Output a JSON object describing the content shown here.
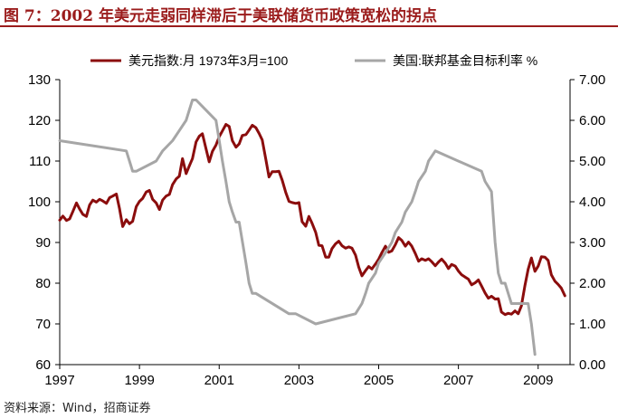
{
  "title": "图 7：2002 年美元走弱同样滞后于美联储货币政策宽松的拐点",
  "source": "资料来源：Wind，招商证券",
  "chart_data": {
    "type": "line",
    "title": "图 7：2002 年美元走弱同样滞后于美联储货币政策宽松的拐点",
    "x_tick_labels": [
      "1997",
      "1999",
      "2001",
      "2003",
      "2005",
      "2007",
      "2009"
    ],
    "x_ticks": [
      1997,
      1999,
      2001,
      2003,
      2005,
      2007,
      2009
    ],
    "xlim": [
      1997,
      2009.8
    ],
    "ylim_left": [
      60,
      130
    ],
    "left_ticks": [
      60,
      70,
      80,
      90,
      100,
      110,
      120,
      130
    ],
    "left_tick_labels": [
      "60",
      "70",
      "80",
      "90",
      "100",
      "110",
      "120",
      "130"
    ],
    "ylim_right": [
      0,
      7
    ],
    "right_ticks": [
      0,
      1,
      2,
      3,
      4,
      5,
      6,
      7
    ],
    "right_tick_labels": [
      "0.00",
      "1.00",
      "2.00",
      "3.00",
      "4.00",
      "5.00",
      "6.00",
      "7.00"
    ],
    "legend_position": "top",
    "grid": false,
    "series": [
      {
        "name": "美元指数:月 1973年3月=100",
        "axis": "left",
        "color": "#8b0d0d",
        "x": [
          1997.0,
          1997.08,
          1997.17,
          1997.25,
          1997.33,
          1997.42,
          1997.5,
          1997.58,
          1997.67,
          1997.75,
          1997.83,
          1997.92,
          1998.0,
          1998.08,
          1998.17,
          1998.25,
          1998.33,
          1998.42,
          1998.5,
          1998.58,
          1998.67,
          1998.75,
          1998.83,
          1998.92,
          1999.0,
          1999.08,
          1999.17,
          1999.25,
          1999.33,
          1999.42,
          1999.5,
          1999.58,
          1999.67,
          1999.75,
          1999.83,
          1999.92,
          2000.0,
          2000.08,
          2000.17,
          2000.25,
          2000.33,
          2000.42,
          2000.5,
          2000.58,
          2000.67,
          2000.75,
          2000.83,
          2000.92,
          2001.0,
          2001.08,
          2001.17,
          2001.25,
          2001.33,
          2001.42,
          2001.5,
          2001.58,
          2001.67,
          2001.75,
          2001.83,
          2001.92,
          2002.0,
          2002.08,
          2002.17,
          2002.25,
          2002.33,
          2002.42,
          2002.5,
          2002.58,
          2002.67,
          2002.75,
          2002.83,
          2002.92,
          2003.0,
          2003.08,
          2003.17,
          2003.25,
          2003.33,
          2003.42,
          2003.5,
          2003.58,
          2003.67,
          2003.75,
          2003.83,
          2003.92,
          2004.0,
          2004.08,
          2004.17,
          2004.25,
          2004.33,
          2004.42,
          2004.5,
          2004.58,
          2004.67,
          2004.75,
          2004.83,
          2004.92,
          2005.0,
          2005.08,
          2005.17,
          2005.25,
          2005.33,
          2005.42,
          2005.5,
          2005.58,
          2005.67,
          2005.75,
          2005.83,
          2005.92,
          2006.0,
          2006.08,
          2006.17,
          2006.25,
          2006.33,
          2006.42,
          2006.5,
          2006.58,
          2006.67,
          2006.75,
          2006.83,
          2006.92,
          2007.0,
          2007.08,
          2007.17,
          2007.25,
          2007.33,
          2007.42,
          2007.5,
          2007.58,
          2007.67,
          2007.75,
          2007.83,
          2007.92,
          2008.0,
          2008.08,
          2008.17,
          2008.25,
          2008.33,
          2008.42,
          2008.5,
          2008.58,
          2008.67,
          2008.75,
          2008.83,
          2008.92,
          2009.0,
          2009.08,
          2009.17,
          2009.25,
          2009.33,
          2009.42,
          2009.5,
          2009.58,
          2009.67
        ],
        "values": [
          95.5,
          96.5,
          95.4,
          95.8,
          97.6,
          99.7,
          98.2,
          96.9,
          96.4,
          99.2,
          100.4,
          99.9,
          100.6,
          100.2,
          99.6,
          101.0,
          101.4,
          101.9,
          98.3,
          93.9,
          95.6,
          94.6,
          95.2,
          98.8,
          100.1,
          100.8,
          102.4,
          102.8,
          100.6,
          99.7,
          98.1,
          100.4,
          101.4,
          101.8,
          104.2,
          105.6,
          106.3,
          110.6,
          106.9,
          108.8,
          110.6,
          114.7,
          116.1,
          116.7,
          113.0,
          109.8,
          112.4,
          113.9,
          116.0,
          117.4,
          119.0,
          118.5,
          115.0,
          113.4,
          114.2,
          116.3,
          116.5,
          117.6,
          118.8,
          118.2,
          116.8,
          115.2,
          110.4,
          106.1,
          107.4,
          107.4,
          107.5,
          105.3,
          102.3,
          100.1,
          99.8,
          99.6,
          99.8,
          95.1,
          94.0,
          96.4,
          94.7,
          92.5,
          89.3,
          89.2,
          86.4,
          86.4,
          88.5,
          89.7,
          90.3,
          89.2,
          88.6,
          88.9,
          88.6,
          86.9,
          83.9,
          81.8,
          83.1,
          84.1,
          83.5,
          84.7,
          85.9,
          87.5,
          89.1,
          87.6,
          87.9,
          89.5,
          91.2,
          90.5,
          89.1,
          90.1,
          89.1,
          87.3,
          85.4,
          86.0,
          85.6,
          86.0,
          85.3,
          84.3,
          85.2,
          85.9,
          84.9,
          83.6,
          84.6,
          84.2,
          83.0,
          82.1,
          81.5,
          81.0,
          79.6,
          80.1,
          80.8,
          79.3,
          77.6,
          76.3,
          76.8,
          76.1,
          76.2,
          72.9,
          72.3,
          72.6,
          72.4,
          73.2,
          72.5,
          74.4,
          79.5,
          83.4,
          86.2,
          82.9,
          84.2,
          86.5,
          86.4,
          85.6,
          82.1,
          80.5,
          79.7,
          78.8,
          76.9
        ]
      },
      {
        "name": "美国:联邦基金目标利率 %",
        "axis": "right",
        "color": "#a6a6a6",
        "x": [
          1997.0,
          1998.67,
          1998.75,
          1998.83,
          1998.92,
          1999.42,
          1999.58,
          1999.83,
          2000.0,
          2000.17,
          2000.33,
          2000.42,
          2000.92,
          2001.0,
          2001.08,
          2001.17,
          2001.25,
          2001.33,
          2001.42,
          2001.5,
          2001.67,
          2001.75,
          2001.83,
          2001.92,
          2002.75,
          2002.92,
          2003.42,
          2004.42,
          2004.58,
          2004.67,
          2004.75,
          2004.92,
          2005.0,
          2005.17,
          2005.33,
          2005.42,
          2005.58,
          2005.67,
          2005.83,
          2005.92,
          2006.0,
          2006.17,
          2006.25,
          2006.42,
          2007.58,
          2007.67,
          2007.83,
          2007.92,
          2008.0,
          2008.08,
          2008.17,
          2008.25,
          2008.33,
          2008.75,
          2008.83,
          2008.92
        ],
        "values": [
          5.5,
          5.25,
          5.0,
          4.75,
          4.75,
          5.0,
          5.25,
          5.5,
          5.75,
          6.0,
          6.5,
          6.5,
          6.0,
          5.5,
          5.0,
          4.5,
          4.0,
          3.75,
          3.5,
          3.5,
          2.5,
          2.0,
          1.75,
          1.75,
          1.25,
          1.25,
          1.0,
          1.25,
          1.5,
          1.75,
          2.0,
          2.25,
          2.5,
          2.75,
          3.0,
          3.25,
          3.5,
          3.75,
          4.0,
          4.25,
          4.5,
          4.75,
          5.0,
          5.25,
          4.75,
          4.5,
          4.25,
          3.0,
          2.25,
          2.0,
          2.0,
          1.75,
          1.5,
          1.5,
          1.0,
          0.25
        ]
      }
    ]
  }
}
